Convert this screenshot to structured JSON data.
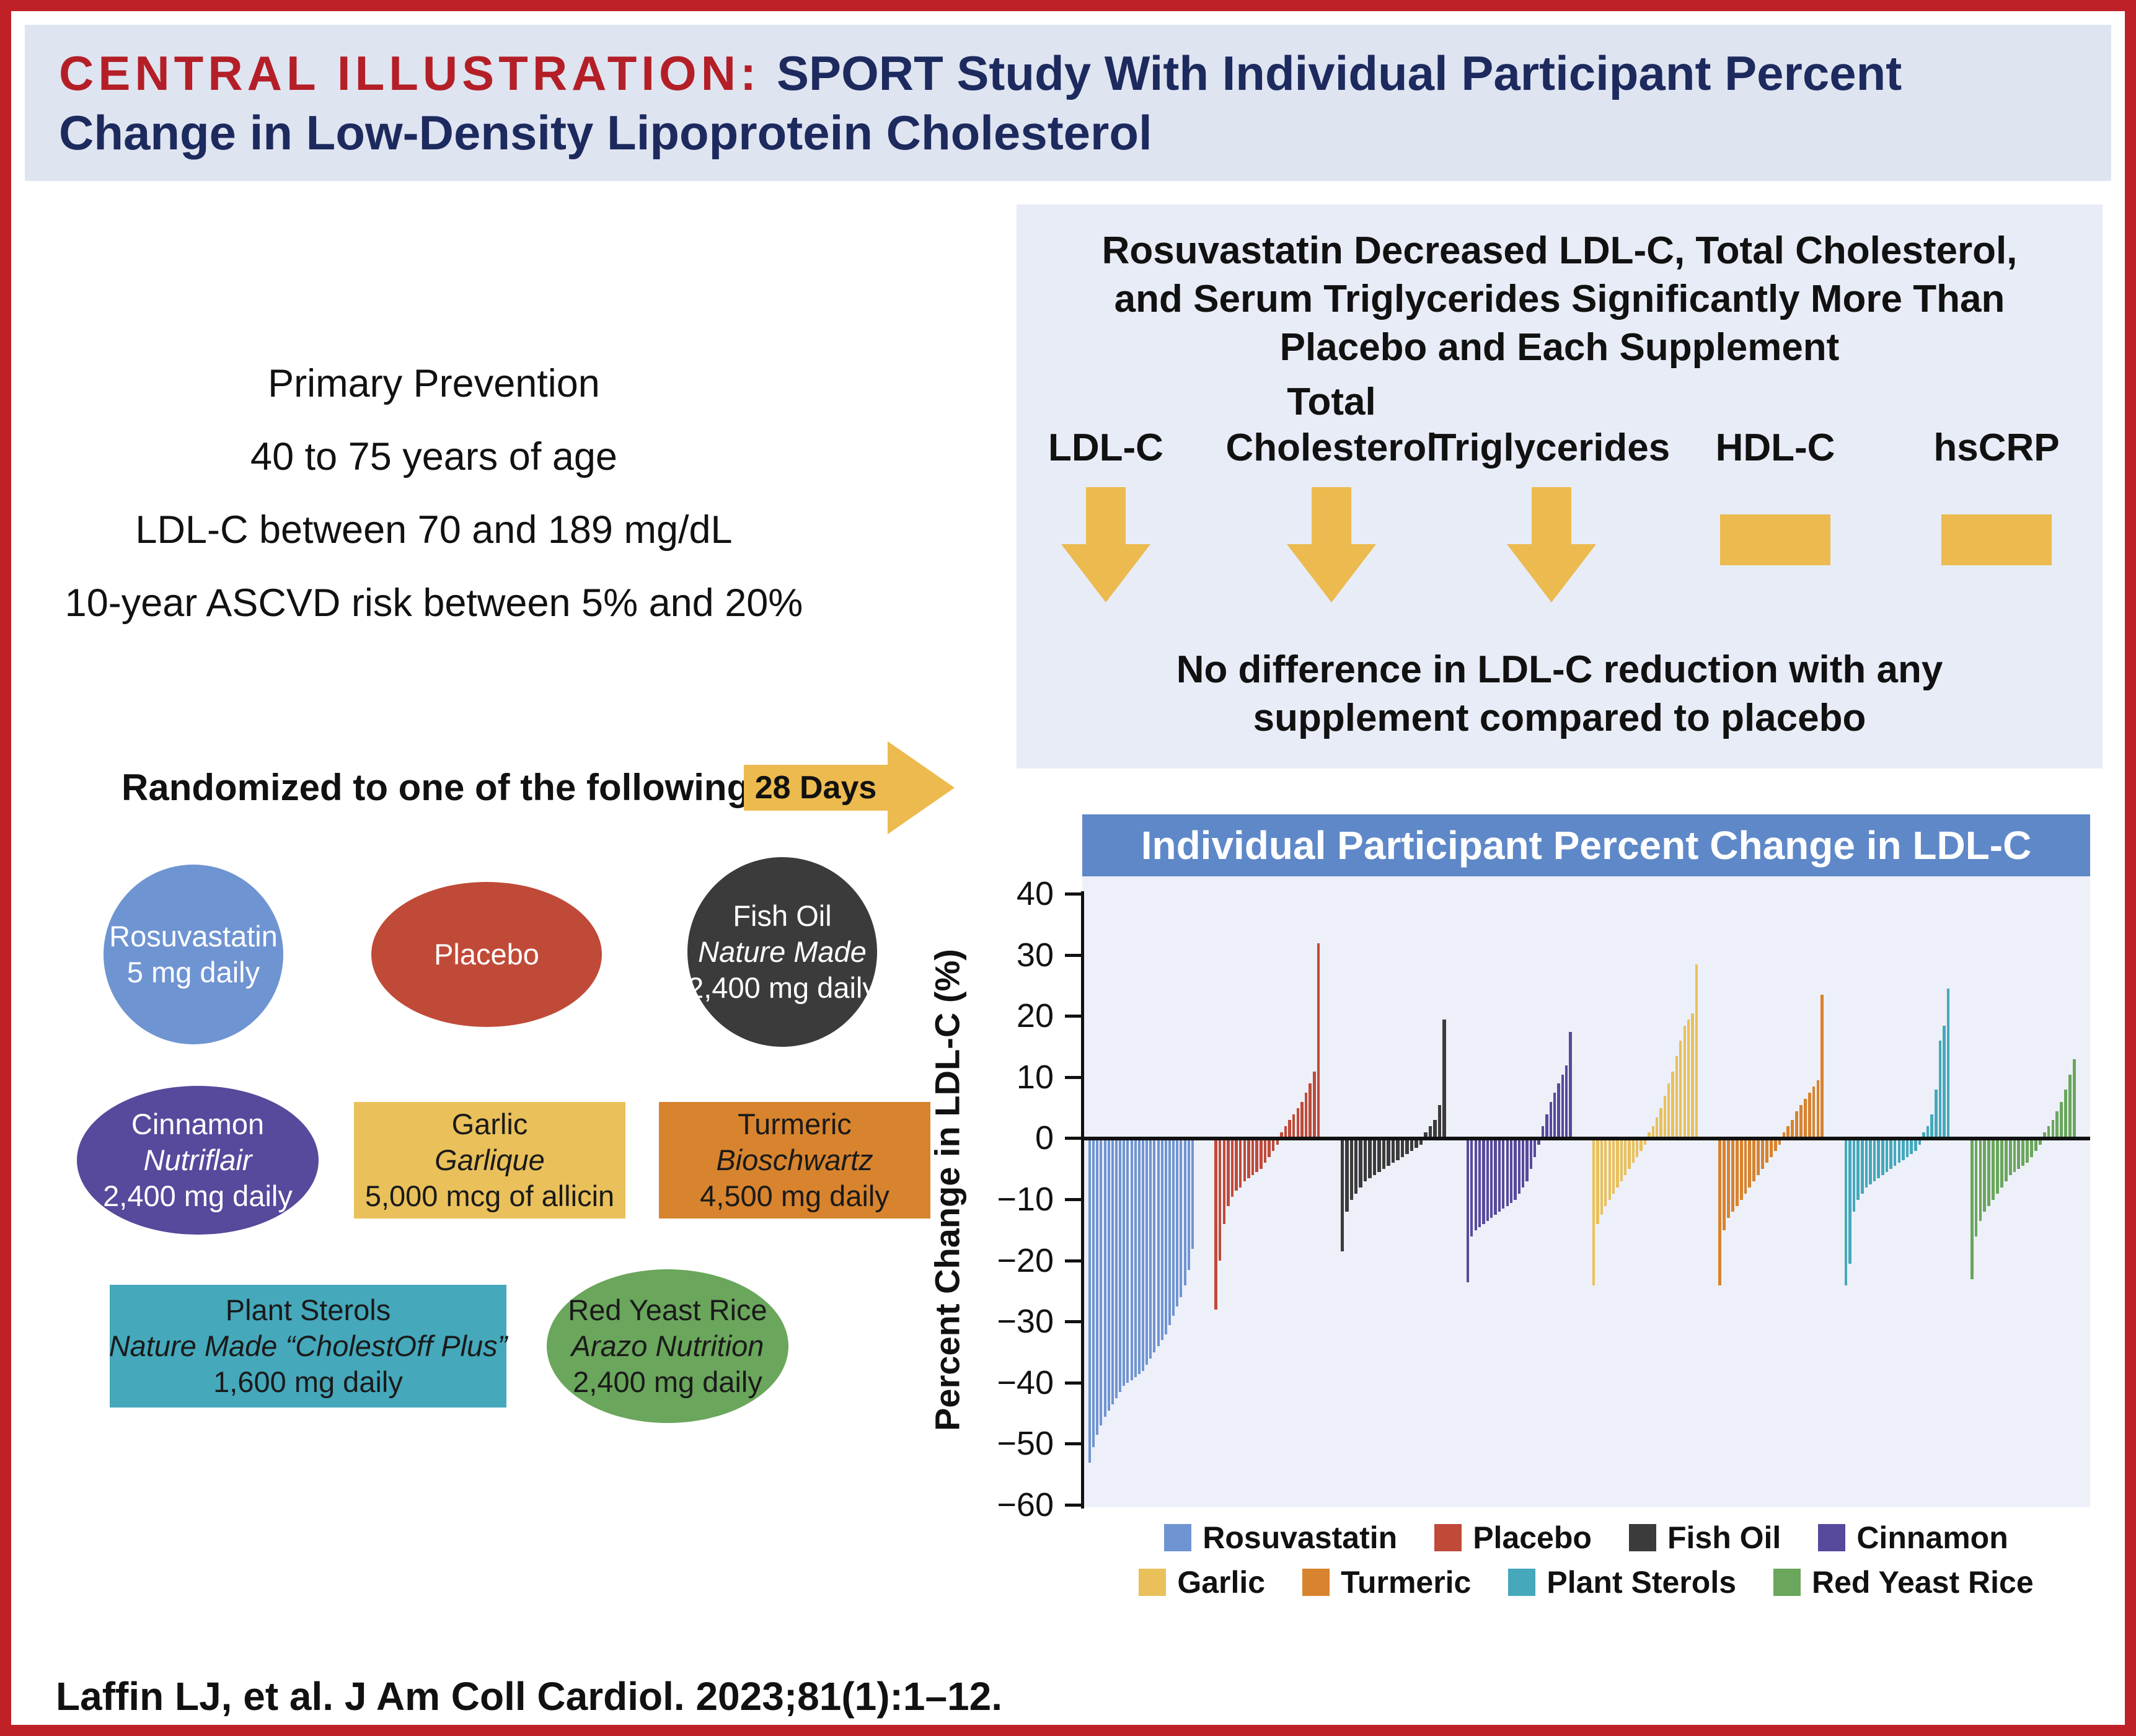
{
  "header": {
    "label": "CENTRAL ILLUSTRATION:",
    "title": "SPORT Study With Individual Participant Percent Change in Low-Density Lipoprotein Cholesterol"
  },
  "inclusion_criteria": [
    "Primary Prevention",
    "40 to 75 years of age",
    "LDL-C between 70 and 189 mg/dL",
    "10-year ASCVD risk between 5% and 20%"
  ],
  "randomization": {
    "label": "Randomized to one of the following:",
    "duration_label": "28 Days",
    "arrow_color": "#ecba4e"
  },
  "treatments": [
    {
      "id": "rosuvastatin",
      "name": "Rosuvastatin",
      "brand": "",
      "dose": "5 mg daily",
      "shape": "circle",
      "color": "#6f94d2",
      "text_color": "#ffffff"
    },
    {
      "id": "placebo",
      "name": "Placebo",
      "brand": "",
      "dose": "",
      "shape": "ellipse",
      "color": "#c04a38",
      "text_color": "#ffffff"
    },
    {
      "id": "fish-oil",
      "name": "Fish Oil",
      "brand": "Nature Made",
      "dose": "2,400 mg daily",
      "shape": "circle",
      "color": "#3b3b3b",
      "text_color": "#ffffff"
    },
    {
      "id": "cinnamon",
      "name": "Cinnamon",
      "brand": "Nutriflair",
      "dose": "2,400 mg daily",
      "shape": "ellipse",
      "color": "#57499c",
      "text_color": "#ffffff"
    },
    {
      "id": "garlic",
      "name": "Garlic",
      "brand": "Garlique",
      "dose": "5,000 mcg of allicin",
      "shape": "rect",
      "color": "#e9c05a",
      "text_color": "#1a1a1a"
    },
    {
      "id": "turmeric",
      "name": "Turmeric",
      "brand": "Bioschwartz",
      "dose": "4,500 mg daily",
      "shape": "rect",
      "color": "#d8832d",
      "text_color": "#1a1a1a"
    },
    {
      "id": "plant-sterols",
      "name": "Plant Sterols",
      "brand": "Nature Made “CholestOff Plus”",
      "dose": "1,600 mg daily",
      "shape": "rect",
      "color": "#45a8bb",
      "text_color": "#1a1a1a"
    },
    {
      "id": "red-yeast-rice",
      "name": "Red Yeast Rice",
      "brand": "Arazo Nutrition",
      "dose": "2,400 mg daily",
      "shape": "ellipse",
      "color": "#6aa65c",
      "text_color": "#1a1a1a"
    }
  ],
  "summary_panel": {
    "heading": "Rosuvastatin Decreased LDL-C, Total Cholesterol, and Serum Triglycerides Significantly More Than Placebo and Each Supplement",
    "marker_color": "#ecba4e",
    "markers": [
      {
        "id": "ldl-c",
        "label_lines": [
          "LDL-C"
        ],
        "effect": "decrease"
      },
      {
        "id": "total-cholesterol",
        "label_lines": [
          "Total",
          "Cholesterol"
        ],
        "effect": "decrease"
      },
      {
        "id": "triglycerides",
        "label_lines": [
          "Triglycerides"
        ],
        "effect": "decrease"
      },
      {
        "id": "hdl-c",
        "label_lines": [
          "HDL-C"
        ],
        "effect": "no-change"
      },
      {
        "id": "hscrp",
        "label_lines": [
          "hsCRP"
        ],
        "effect": "no-change"
      }
    ],
    "footnote": "No difference in LDL-C reduction with any supplement compared to placebo"
  },
  "chart_data": {
    "type": "bar",
    "title": "Individual Participant Percent Change in LDL-C",
    "ylabel": "Percent Change in LDL-C (%)",
    "xlabel": "",
    "ylim": [
      -60,
      40
    ],
    "yticks": [
      40,
      30,
      20,
      10,
      0,
      -10,
      -20,
      -30,
      -40,
      -50,
      -60
    ],
    "grid": false,
    "legend_position": "bottom",
    "series": [
      {
        "name": "Rosuvastatin",
        "color": "#6f94d2",
        "values": [
          -53,
          -50.5,
          -48.5,
          -47,
          -45.5,
          -44.5,
          -43.5,
          -42.5,
          -41.5,
          -40.5,
          -40,
          -39.5,
          -39,
          -38.5,
          -38,
          -37,
          -36,
          -35,
          -34,
          -33,
          -32,
          -30.5,
          -29,
          -27.5,
          -26,
          -24,
          -21.5,
          -18
        ]
      },
      {
        "name": "Placebo",
        "color": "#c04a38",
        "values": [
          -28,
          -20,
          -14,
          -11,
          -9.5,
          -8.5,
          -8,
          -7,
          -6.5,
          -6,
          -5.5,
          -5,
          -4,
          -3,
          -2,
          -1,
          1,
          2,
          3,
          4,
          5,
          6,
          7.5,
          9,
          11,
          32
        ]
      },
      {
        "name": "Fish Oil",
        "color": "#3b3b3b",
        "values": [
          -18.5,
          -12,
          -10,
          -9,
          -8,
          -7,
          -6.5,
          -6,
          -5.5,
          -5,
          -4.5,
          -4,
          -3.5,
          -3,
          -2.5,
          -2,
          -1.5,
          -1,
          1,
          2,
          3,
          5.5,
          19.5
        ]
      },
      {
        "name": "Cinnamon",
        "color": "#57499c",
        "values": [
          -23.5,
          -16,
          -15,
          -14.5,
          -14,
          -13.5,
          -13,
          -12.5,
          -12,
          -11.5,
          -11,
          -10.5,
          -10,
          -9,
          -8,
          -7,
          -5,
          -3,
          -1,
          2,
          4,
          6,
          7.5,
          9,
          10.5,
          12,
          17.5
        ]
      },
      {
        "name": "Garlic",
        "color": "#e9c05a",
        "values": [
          -24,
          -14,
          -12.5,
          -11,
          -10,
          -9,
          -8,
          -7,
          -6,
          -5,
          -4,
          -3,
          -2,
          -1,
          1,
          2,
          3.5,
          5,
          7,
          9,
          11,
          13.5,
          16,
          18.5,
          19.5,
          20.5,
          28.5
        ]
      },
      {
        "name": "Turmeric",
        "color": "#d8832d",
        "values": [
          -24,
          -15,
          -13,
          -12,
          -11,
          -10,
          -9,
          -8,
          -7,
          -6,
          -5,
          -4,
          -3,
          -2,
          -1,
          1,
          2,
          3,
          4.5,
          5.5,
          6.5,
          7.5,
          8.5,
          9.5,
          23.5
        ]
      },
      {
        "name": "Plant Sterols",
        "color": "#45a8bb",
        "values": [
          -24,
          -20.5,
          -12,
          -10,
          -9,
          -8,
          -7.5,
          -7,
          -6.5,
          -6,
          -5.5,
          -5,
          -4.5,
          -4,
          -3.5,
          -3,
          -2.5,
          -2,
          -1,
          1,
          2,
          4,
          8,
          16,
          18.5,
          24.5
        ]
      },
      {
        "name": "Red Yeast Rice",
        "color": "#6aa65c",
        "values": [
          -23,
          -16,
          -13.5,
          -12,
          -11,
          -10,
          -9,
          -8,
          -7,
          -6,
          -5.5,
          -5,
          -4.5,
          -4,
          -3,
          -2,
          -1,
          1,
          2,
          3,
          4.5,
          6,
          8,
          10.5,
          13
        ]
      }
    ]
  },
  "citation": "Laffin LJ, et al. J Am Coll Cardiol. 2023;81(1):1–12.",
  "colors": {
    "border": "#bf2127",
    "header_background": "#dfe4f1",
    "header_label_red": "#b41f27",
    "header_title_navy": "#1c2a5e",
    "panel_background": "#e7ecf6",
    "chart_header_background": "#5e88c8",
    "plot_background": "#edf0f8",
    "highlight_yellow": "#ecba4e"
  }
}
